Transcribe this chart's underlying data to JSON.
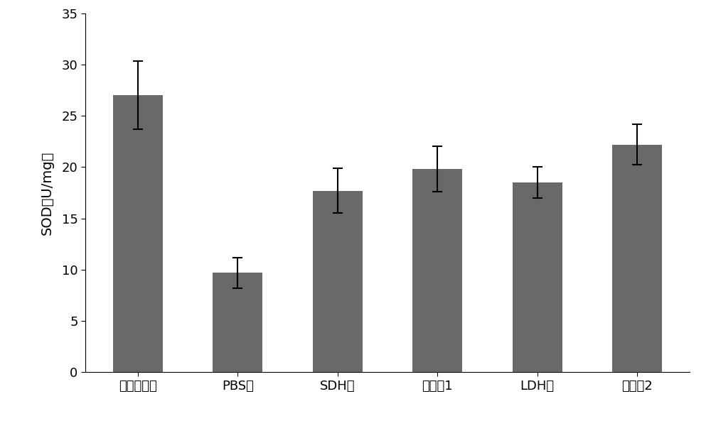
{
  "categories": [
    "空白对照组",
    "PBS组",
    "SDH组",
    "联合组1",
    "LDH组",
    "联合组2"
  ],
  "values": [
    27.0,
    9.7,
    17.7,
    19.8,
    18.5,
    22.2
  ],
  "errors": [
    3.3,
    1.5,
    2.2,
    2.2,
    1.5,
    2.0
  ],
  "bar_color": "#696969",
  "ylabel": "SOD（U/mg）",
  "ylim": [
    0,
    35
  ],
  "yticks": [
    0,
    5,
    10,
    15,
    20,
    25,
    30,
    35
  ],
  "background_color": "#ffffff",
  "bar_width": 0.5,
  "ylabel_fontsize": 14,
  "tick_fontsize": 13,
  "xtick_fontsize": 13
}
